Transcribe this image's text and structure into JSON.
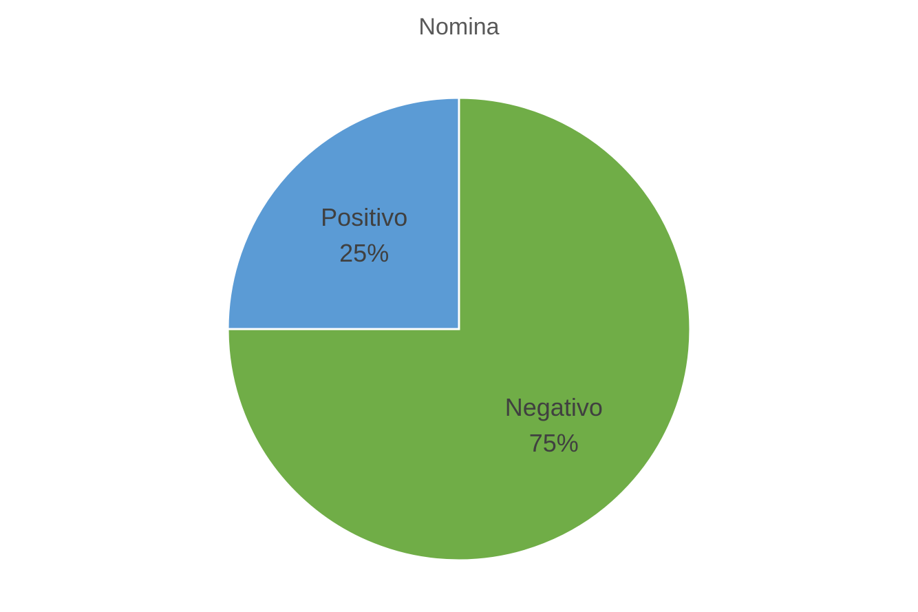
{
  "chart_data": {
    "type": "pie",
    "title": "Nomina",
    "categories": [
      "Positivo",
      "Negativo"
    ],
    "values": [
      25,
      75
    ],
    "labels": [
      {
        "name": "Positivo",
        "percent": "25%"
      },
      {
        "name": "Negativo",
        "percent": "75%"
      }
    ],
    "colors": [
      "#5B9BD5",
      "#70AD47"
    ],
    "legend": "none",
    "grid": false
  }
}
